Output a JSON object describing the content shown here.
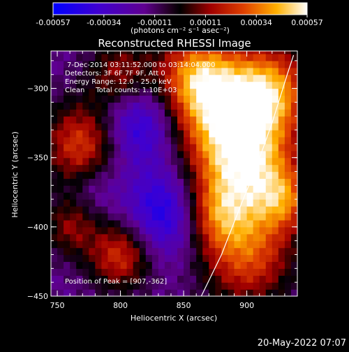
{
  "chart_data": {
    "type": "heatmap",
    "title": "Reconstructed RHESSI Image",
    "xlabel": "Heliocentric X (arcsec)",
    "ylabel": "Heliocentric Y (arcsec)",
    "xlim": [
      745,
      940
    ],
    "ylim": [
      -450,
      -273
    ],
    "x_ticks": [
      "750",
      "800",
      "850",
      "900"
    ],
    "y_ticks": [
      "-450",
      "-400",
      "-350",
      "-300"
    ],
    "colorbar": {
      "ticks": [
        "-0.00057",
        "-0.00034",
        "-0.00011",
        "0.00011",
        "0.00034",
        "0.00057"
      ],
      "unit_label": "(photons cm⁻² s⁻¹ asec⁻²)",
      "range": [
        -0.00057,
        0.00057
      ]
    },
    "annotations": {
      "time": "7-Dec-2014 03:11:52.000 to 03:14:04.000",
      "detectors": "Detectors: 3F 6F 7F 9F, Att 0",
      "energy": "Energy Range: 12.0 - 25.0 keV",
      "clean": "Clean     Total counts: 1.10E+03",
      "peak": "Position of Peak = [907,-362]"
    },
    "peak": {
      "x": 907,
      "y": -362
    },
    "limb_curve": [
      [
        864,
        -450
      ],
      [
        880,
        -420
      ],
      [
        895,
        -385
      ],
      [
        907,
        -358
      ],
      [
        920,
        -325
      ],
      [
        932,
        -290
      ],
      [
        937,
        -276
      ]
    ],
    "sources": [
      {
        "x": 900,
        "y": -355,
        "intensity": 1.0,
        "sigma": 28
      },
      {
        "x": 880,
        "y": -315,
        "intensity": 0.85,
        "sigma": 30
      },
      {
        "x": 920,
        "y": -300,
        "intensity": 0.8,
        "sigma": 22
      },
      {
        "x": 860,
        "y": -290,
        "intensity": 0.7,
        "sigma": 22
      },
      {
        "x": 770,
        "y": -340,
        "intensity": 0.75,
        "sigma": 22
      },
      {
        "x": 800,
        "y": -290,
        "intensity": 0.55,
        "sigma": 18
      },
      {
        "x": 800,
        "y": -420,
        "intensity": 0.7,
        "sigma": 18
      },
      {
        "x": 760,
        "y": -400,
        "intensity": 0.45,
        "sigma": 15
      },
      {
        "x": 900,
        "y": -420,
        "intensity": 0.75,
        "sigma": 26
      },
      {
        "x": 875,
        "y": -390,
        "intensity": 0.55,
        "sigma": 18
      },
      {
        "x": 930,
        "y": -380,
        "intensity": 0.55,
        "sigma": 16
      }
    ],
    "negative_regions": [
      {
        "x": 815,
        "y": -325,
        "intensity": -0.6,
        "sigma": 22
      },
      {
        "x": 835,
        "y": -390,
        "intensity": -0.6,
        "sigma": 22
      },
      {
        "x": 780,
        "y": -370,
        "intensity": -0.2,
        "sigma": 14
      }
    ]
  },
  "footer": {
    "date": "20-May-2022 07:07"
  }
}
